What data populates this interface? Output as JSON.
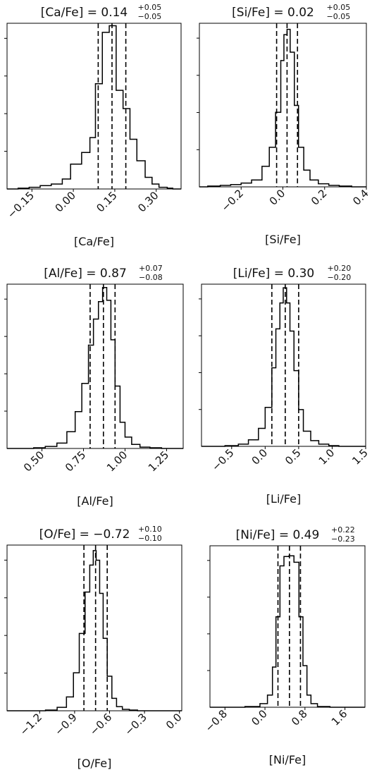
{
  "chart_data": [
    {
      "type": "bar",
      "title": {
        "main": "[Ca/Fe] = 0.14",
        "sup": "+0.05",
        "sub": "−0.05"
      },
      "xlabel": "[Ca/Fe]",
      "xlim": [
        -0.24,
        0.39
      ],
      "xticks": [
        -0.15,
        0.0,
        0.15,
        0.3
      ],
      "xtick_labels": [
        "−0.15",
        "0.00",
        "0.15",
        "0.30"
      ],
      "bin_edges": [
        -0.24,
        -0.2,
        -0.16,
        -0.12,
        -0.08,
        -0.04,
        -0.01,
        0.03,
        0.06,
        0.08,
        0.105,
        0.13,
        0.155,
        0.18,
        0.205,
        0.23,
        0.26,
        0.285,
        0.31,
        0.34,
        0.36,
        0.39
      ],
      "counts": [
        0,
        1,
        2,
        4,
        6,
        12,
        30,
        44,
        62,
        127,
        189,
        197,
        119,
        97,
        60,
        34,
        14,
        6,
        2,
        1,
        0
      ],
      "ylim": [
        0,
        200
      ],
      "quantiles": [
        0.09,
        0.14,
        0.19
      ]
    },
    {
      "type": "bar",
      "title": {
        "main": "[Si/Fe] = 0.02",
        "sup": "+0.05",
        "sub": "−0.05"
      },
      "xlabel": "[Si/Fe]",
      "xlim": [
        -0.4,
        0.4
      ],
      "xticks": [
        -0.2,
        0.0,
        0.2,
        0.4
      ],
      "xtick_labels": [
        "−0.2",
        "0.0",
        "0.2",
        "0.4"
      ],
      "bin_edges": [
        -0.4,
        -0.36,
        -0.3,
        -0.25,
        -0.2,
        -0.15,
        -0.1,
        -0.065,
        -0.035,
        -0.01,
        0.005,
        0.02,
        0.035,
        0.055,
        0.075,
        0.1,
        0.13,
        0.17,
        0.22,
        0.27,
        0.33,
        0.4
      ],
      "counts": [
        0,
        1,
        2,
        3,
        5,
        9,
        27,
        52,
        98,
        166,
        200,
        207,
        177,
        107,
        52,
        22,
        9,
        4,
        2,
        1,
        0
      ],
      "ylim": [
        0,
        215
      ],
      "quantiles": [
        -0.03,
        0.02,
        0.07
      ]
    },
    {
      "type": "bar",
      "title": {
        "main": "[Al/Fe] = 0.87",
        "sup": "+0.07",
        "sub": "−0.08"
      },
      "xlabel": "[Al/Fe]",
      "xlim": [
        0.29,
        1.35
      ],
      "xticks": [
        0.5,
        0.75,
        1.0,
        1.25
      ],
      "xtick_labels": [
        "0.50",
        "0.75",
        "1.00",
        "1.25"
      ],
      "bin_edges": [
        0.29,
        0.45,
        0.52,
        0.59,
        0.65,
        0.7,
        0.74,
        0.78,
        0.81,
        0.84,
        0.865,
        0.89,
        0.915,
        0.94,
        0.97,
        1.0,
        1.04,
        1.09,
        1.15,
        1.22,
        1.35
      ],
      "counts": [
        0,
        1,
        3,
        8,
        25,
        55,
        97,
        154,
        193,
        219,
        240,
        221,
        162,
        93,
        39,
        17,
        6,
        2,
        1,
        0
      ],
      "ylim": [
        0,
        245
      ],
      "quantiles": [
        0.79,
        0.87,
        0.94
      ]
    },
    {
      "type": "bar",
      "title": {
        "main": "[Li/Fe] = 0.30",
        "sup": "+0.20",
        "sub": "−0.20"
      },
      "xlabel": "[Li/Fe]",
      "xlim": [
        -0.95,
        1.5
      ],
      "xticks": [
        -0.5,
        0.0,
        0.5,
        1.0,
        1.5
      ],
      "xtick_labels": [
        "−0.5",
        "0.0",
        "0.5",
        "1.0",
        "1.5"
      ],
      "bin_edges": [
        -0.95,
        -0.6,
        -0.4,
        -0.25,
        -0.1,
        0.0,
        0.1,
        0.16,
        0.22,
        0.27,
        0.32,
        0.37,
        0.43,
        0.5,
        0.57,
        0.68,
        0.8,
        0.95,
        1.1,
        1.25,
        1.5
      ],
      "counts": [
        0,
        1,
        3,
        9,
        25,
        54,
        109,
        163,
        199,
        220,
        199,
        160,
        105,
        51,
        21,
        8,
        3,
        1,
        0,
        0
      ],
      "ylim": [
        0,
        225
      ],
      "quantiles": [
        0.1,
        0.3,
        0.5
      ]
    },
    {
      "type": "bar",
      "title": {
        "main": "[O/Fe] = −0.72",
        "sup": "+0.10",
        "sub": "−0.10"
      },
      "xlabel": "[O/Fe]",
      "xlim": [
        -1.48,
        0.02
      ],
      "xticks": [
        -1.2,
        -0.9,
        -0.6,
        -0.3,
        0.0
      ],
      "xtick_labels": [
        "−1.2",
        "−0.9",
        "−0.6",
        "−0.3",
        "0.0"
      ],
      "bin_edges": [
        -1.48,
        -1.15,
        -1.05,
        -0.97,
        -0.91,
        -0.86,
        -0.81,
        -0.77,
        -0.74,
        -0.715,
        -0.685,
        -0.655,
        -0.62,
        -0.58,
        -0.54,
        -0.49,
        -0.43,
        -0.36,
        -0.25,
        0.02
      ],
      "counts": [
        0,
        1,
        5,
        20,
        55,
        112,
        172,
        211,
        232,
        218,
        170,
        105,
        50,
        18,
        6,
        2,
        1,
        0,
        0
      ],
      "ylim": [
        0,
        240
      ],
      "quantiles": [
        -0.82,
        -0.72,
        -0.62
      ]
    },
    {
      "type": "bar",
      "title": {
        "main": "[Ni/Fe] = 0.49",
        "sup": "+0.22",
        "sub": "−0.23"
      },
      "xlabel": "[Ni/Fe]",
      "xlim": [
        -1.1,
        2.0
      ],
      "xticks": [
        -0.8,
        0.0,
        0.8,
        1.6
      ],
      "xtick_labels": [
        "−0.8",
        "0.0",
        "0.8",
        "1.6"
      ],
      "bin_edges": [
        -1.1,
        -0.4,
        -0.1,
        0.05,
        0.15,
        0.22,
        0.3,
        0.38,
        0.48,
        0.58,
        0.68,
        0.76,
        0.84,
        0.92,
        1.05,
        1.3,
        2.0
      ],
      "counts": [
        0,
        1,
        5,
        17,
        56,
        126,
        197,
        210,
        211,
        202,
        126,
        58,
        17,
        5,
        1,
        0
      ],
      "ylim": [
        0,
        225
      ],
      "quantiles": [
        0.26,
        0.49,
        0.71
      ]
    }
  ]
}
